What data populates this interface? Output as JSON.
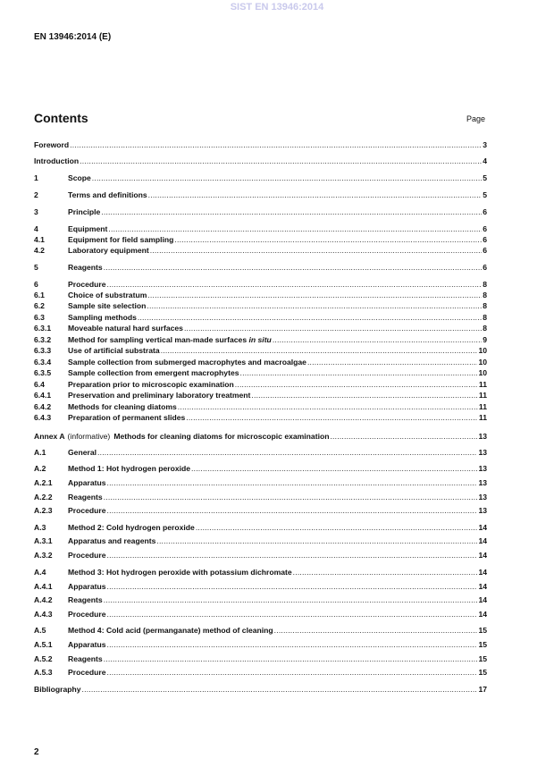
{
  "watermark": "SIST EN 13946:2014",
  "header": {
    "doc_id": "EN 13946:2014 (E)"
  },
  "toc": {
    "title": "Contents",
    "page_label": "Page",
    "entries": [
      {
        "num": "",
        "title": "Foreword",
        "page": "3"
      },
      {
        "num": "",
        "title": "Introduction",
        "page": "4"
      },
      {
        "num": "1",
        "title": "Scope",
        "page": "5"
      },
      {
        "num": "2",
        "title": "Terms and definitions",
        "page": "5"
      },
      {
        "num": "3",
        "title": "Principle",
        "page": "6"
      },
      {
        "num": "4",
        "title": "Equipment",
        "page": "6"
      },
      {
        "num": "4.1",
        "title": "Equipment for field sampling",
        "page": "6"
      },
      {
        "num": "4.2",
        "title": "Laboratory equipment",
        "page": "6"
      },
      {
        "num": "5",
        "title": "Reagents",
        "page": "6"
      },
      {
        "num": "6",
        "title": "Procedure",
        "page": "8"
      },
      {
        "num": "6.1",
        "title": "Choice of substratum",
        "page": "8"
      },
      {
        "num": "6.2",
        "title": "Sample site selection",
        "page": "8"
      },
      {
        "num": "6.3",
        "title": "Sampling methods",
        "page": "8"
      },
      {
        "num": "6.3.1",
        "title": "Moveable natural hard surfaces",
        "page": "8"
      },
      {
        "num": "6.3.2",
        "title": "Method for sampling vertical man-made surfaces ",
        "italic": "in situ",
        "page": "9"
      },
      {
        "num": "6.3.3",
        "title": "Use of artificial substrata",
        "page": "10"
      },
      {
        "num": "6.3.4",
        "title": "Sample collection from submerged macrophytes and macroalgae",
        "page": "10"
      },
      {
        "num": "6.3.5",
        "title": "Sample collection from emergent macrophytes",
        "page": "10"
      },
      {
        "num": "6.4",
        "title": "Preparation prior to microscopic examination",
        "page": "11"
      },
      {
        "num": "6.4.1",
        "title": "Preservation and preliminary laboratory treatment",
        "page": "11"
      },
      {
        "num": "6.4.2",
        "title": "Methods for cleaning diatoms",
        "page": "11"
      },
      {
        "num": "6.4.3",
        "title": "Preparation of permanent slides",
        "page": "11"
      },
      {
        "num": "",
        "label": "Annex A",
        "note": "(informative)",
        "title": "Methods for cleaning diatoms for microscopic examination",
        "page": "13"
      },
      {
        "num": "A.1",
        "title": "General",
        "page": "13"
      },
      {
        "num": "A.2",
        "title": "Method 1: Hot hydrogen peroxide",
        "page": "13"
      },
      {
        "num": "A.2.1",
        "title": "Apparatus",
        "page": "13"
      },
      {
        "num": "A.2.2",
        "title": "Reagents",
        "page": "13"
      },
      {
        "num": "A.2.3",
        "title": "Procedure",
        "page": "13"
      },
      {
        "num": "A.3",
        "title": "Method 2: Cold hydrogen peroxide",
        "page": "14"
      },
      {
        "num": "A.3.1",
        "title": "Apparatus and reagents",
        "page": "14"
      },
      {
        "num": "A.3.2",
        "title": "Procedure",
        "page": "14"
      },
      {
        "num": "A.4",
        "title": "Method 3: Hot hydrogen peroxide with potassium dichromate",
        "page": "14"
      },
      {
        "num": "A.4.1",
        "title": "Apparatus",
        "page": "14"
      },
      {
        "num": "A.4.2",
        "title": "Reagents",
        "page": "14"
      },
      {
        "num": "A.4.3",
        "title": "Procedure",
        "page": "14"
      },
      {
        "num": "A.5",
        "title": "Method 4: Cold acid (permanganate) method of cleaning",
        "page": "15"
      },
      {
        "num": "A.5.1",
        "title": "Apparatus",
        "page": "15"
      },
      {
        "num": "A.5.2",
        "title": "Reagents",
        "page": "15"
      },
      {
        "num": "A.5.3",
        "title": "Procedure",
        "page": "15"
      },
      {
        "num": "",
        "title": "Bibliography",
        "page": "17"
      }
    ]
  },
  "footer": {
    "page_number": "2"
  }
}
